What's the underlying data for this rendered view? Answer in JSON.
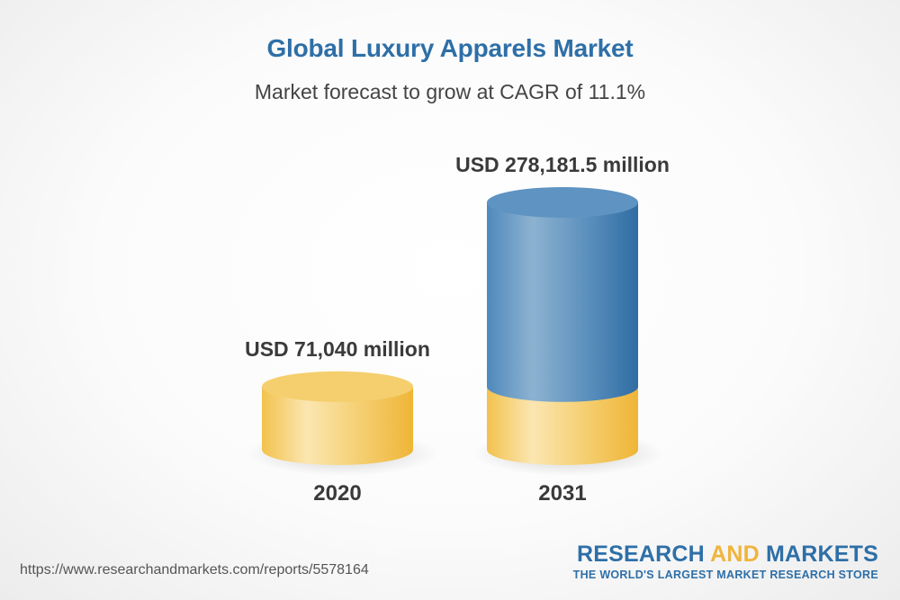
{
  "title": "Global Luxury Apparels Market",
  "subtitle": "Market forecast to grow at CAGR of 11.1%",
  "source_url": "https://www.researchandmarkets.com/reports/5578164",
  "brand": {
    "word1": "RESEARCH",
    "word2": "AND",
    "word3": "MARKETS",
    "tagline": "THE WORLD'S LARGEST MARKET RESEARCH STORE"
  },
  "colors": {
    "title": "#2e6fa7",
    "gold": "#f2c24e",
    "blue": "#3f7fb3"
  },
  "chart_data": {
    "type": "bar",
    "style": "3d-cylinder",
    "categories": [
      "2020",
      "2031"
    ],
    "values": [
      71040,
      278181.5
    ],
    "value_labels": [
      "USD 71,040 million",
      "USD 278,181.5 million"
    ],
    "base_value": 71040,
    "unit": "USD million",
    "title": "Global Luxury Apparels Market",
    "subtitle": "Market forecast to grow at CAGR of 11.1%",
    "xlabel": "",
    "ylabel": "",
    "grid": false,
    "legend": false
  }
}
